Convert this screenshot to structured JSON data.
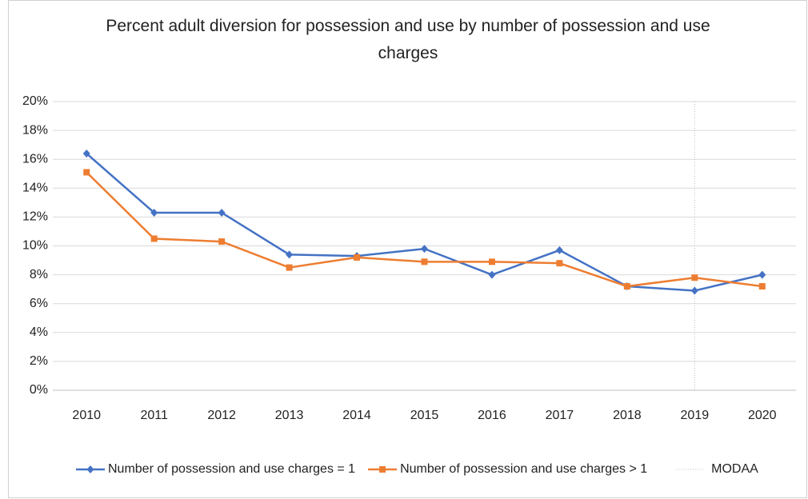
{
  "chart_data": {
    "type": "line",
    "title": "Percent adult diversion for possession and use by number of possession and use charges",
    "categories": [
      "2010",
      "2011",
      "2012",
      "2013",
      "2014",
      "2015",
      "2016",
      "2017",
      "2018",
      "2019",
      "2020"
    ],
    "series": [
      {
        "name": "Number of possession and use charges = 1",
        "color": "#4472c4",
        "marker": "diamond",
        "values": [
          16.4,
          12.3,
          12.3,
          9.4,
          9.3,
          9.8,
          8.0,
          9.7,
          7.2,
          6.9,
          8.0
        ]
      },
      {
        "name": "Number of possession and use charges > 1",
        "color": "#ed7d31",
        "marker": "square",
        "values": [
          15.1,
          10.5,
          10.3,
          8.5,
          9.2,
          8.9,
          8.9,
          8.8,
          7.2,
          7.8,
          7.2
        ]
      }
    ],
    "reference_line": {
      "name": "MODAA",
      "x": "2019",
      "color": "#bfbfbf"
    },
    "ylim": [
      0,
      20
    ],
    "yticks": [
      {
        "value": 0,
        "label": "0%"
      },
      {
        "value": 2,
        "label": "2%"
      },
      {
        "value": 4,
        "label": "4%"
      },
      {
        "value": 6,
        "label": "6%"
      },
      {
        "value": 8,
        "label": "8%"
      },
      {
        "value": 10,
        "label": "10%"
      },
      {
        "value": 12,
        "label": "12%"
      },
      {
        "value": 14,
        "label": "14%"
      },
      {
        "value": 16,
        "label": "16%"
      },
      {
        "value": 18,
        "label": "18%"
      },
      {
        "value": 20,
        "label": "20%"
      }
    ],
    "grid": true,
    "legend": "bottom"
  }
}
